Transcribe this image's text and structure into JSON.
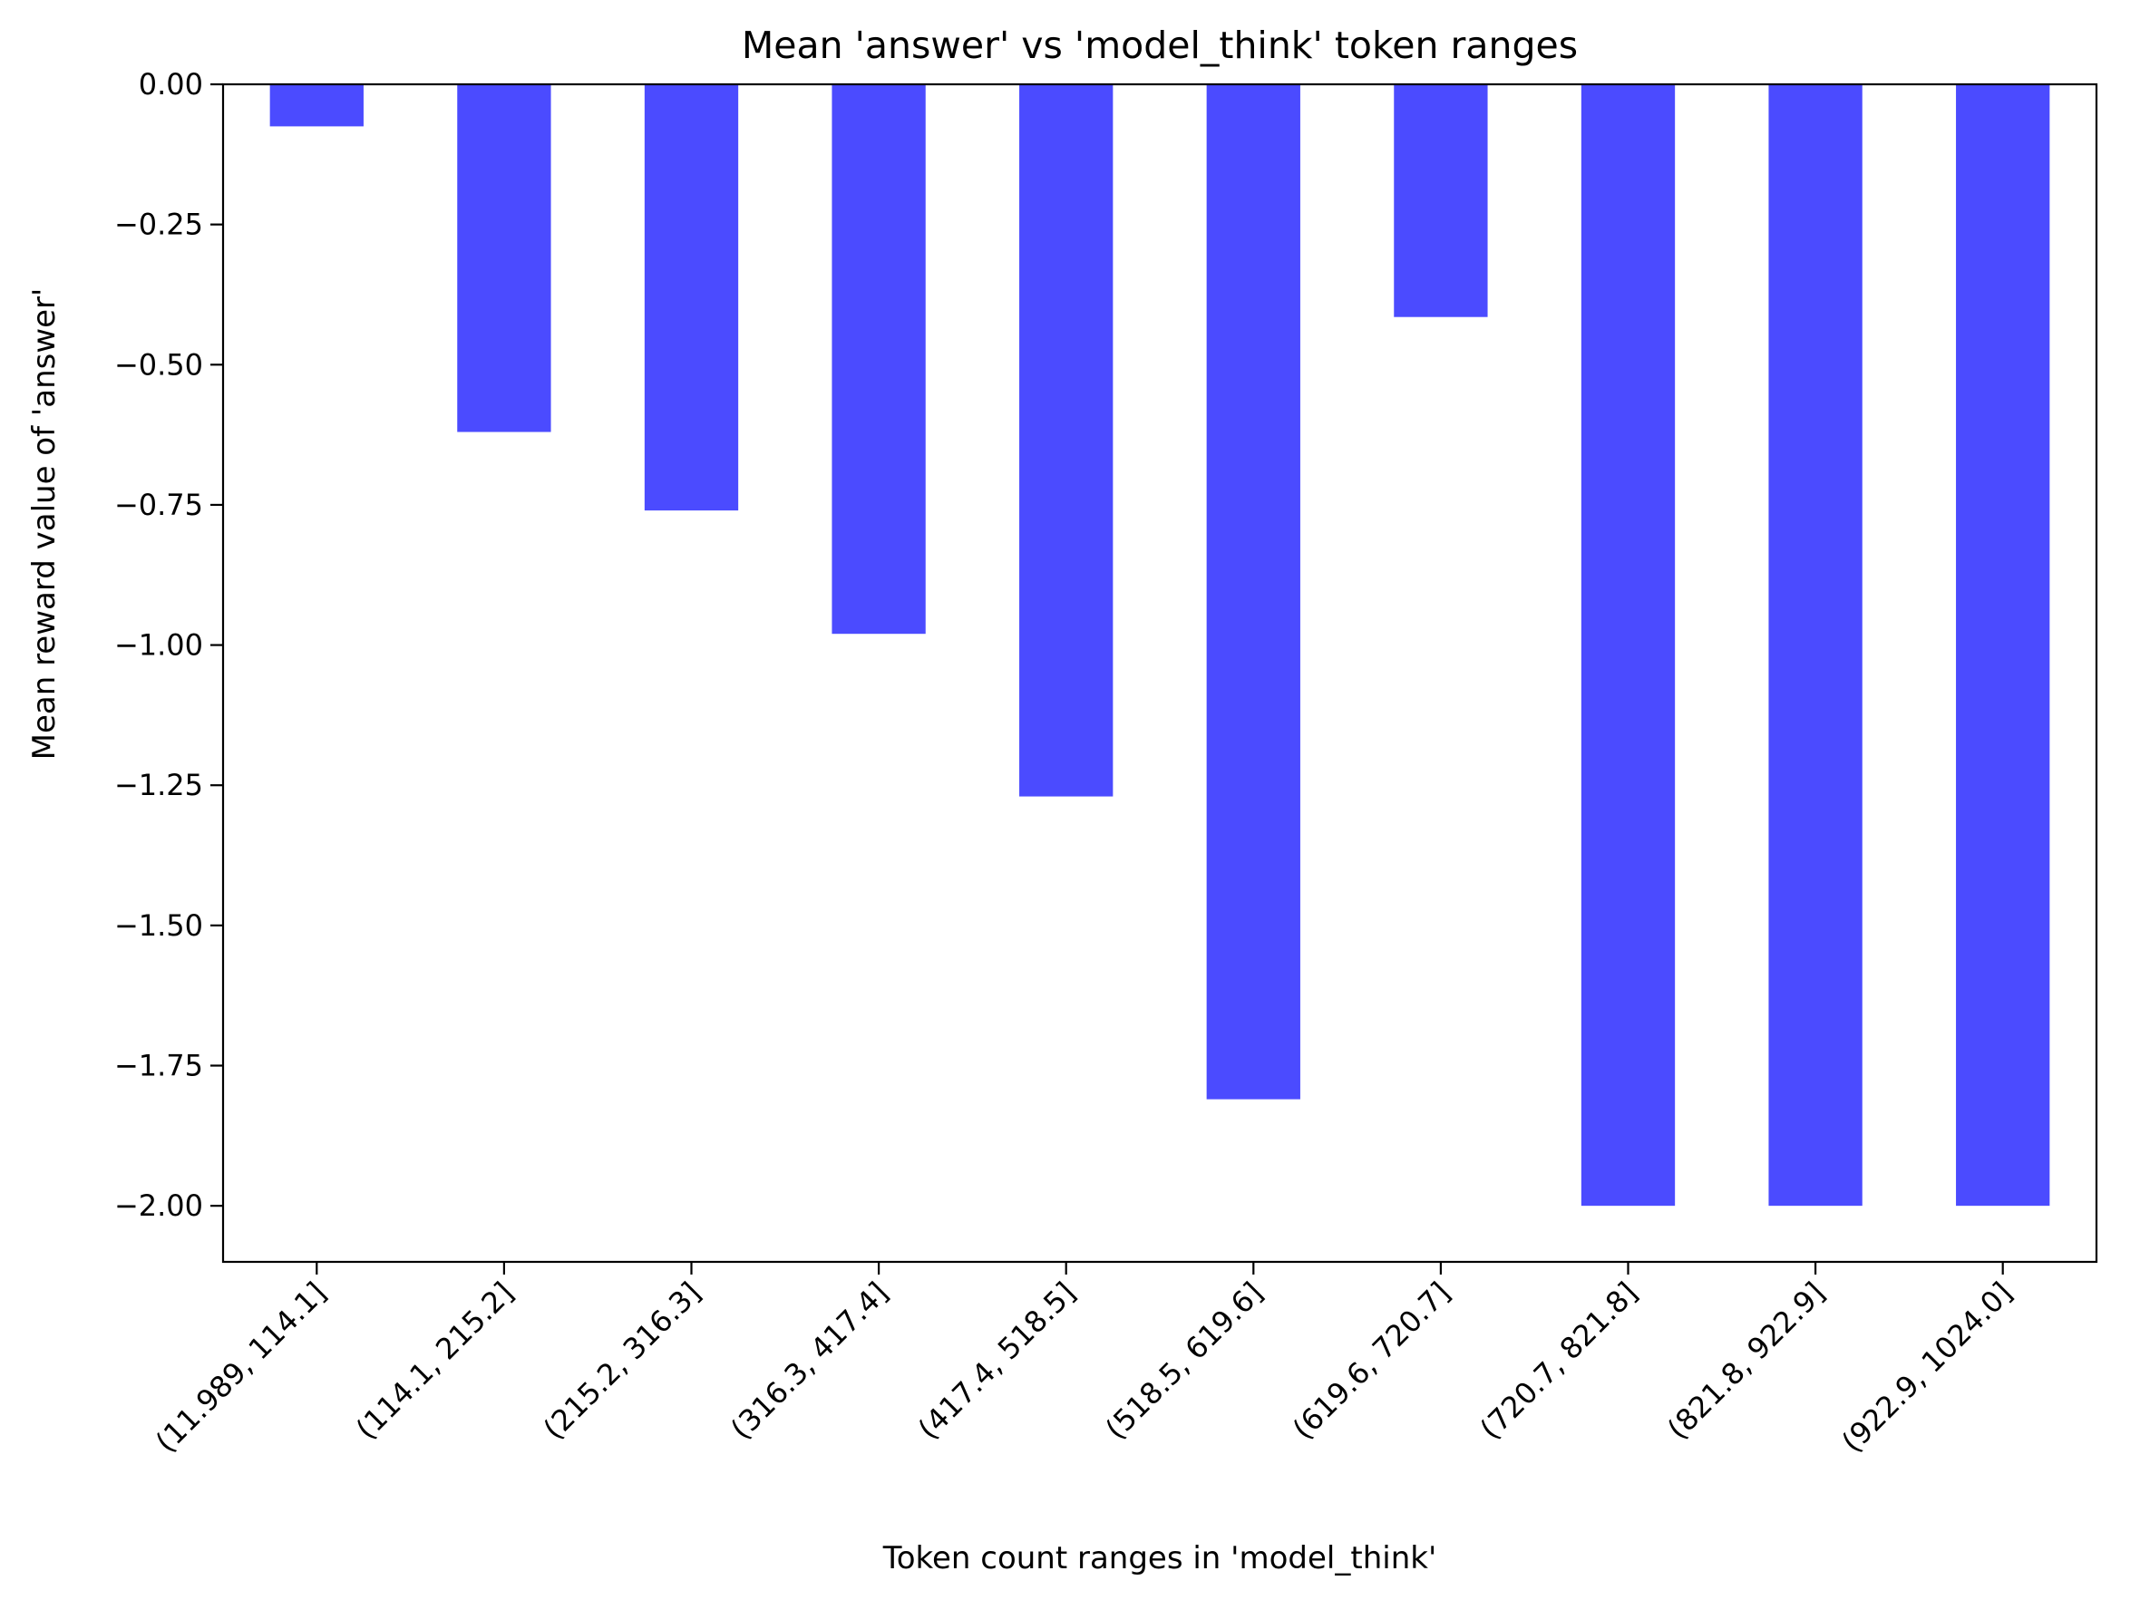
{
  "chart_data": {
    "type": "bar",
    "title": "Mean 'answer' vs 'model_think' token ranges",
    "xlabel": "Token count ranges in 'model_think'",
    "ylabel": "Mean reward value of 'answer'",
    "categories": [
      "(11.989, 114.1]",
      "(114.1, 215.2]",
      "(215.2, 316.3]",
      "(316.3, 417.4]",
      "(417.4, 518.5]",
      "(518.5, 619.6]",
      "(619.6, 720.7]",
      "(720.7, 821.8]",
      "(821.8, 922.9]",
      "(922.9, 1024.0]"
    ],
    "values": [
      -0.075,
      -0.62,
      -0.76,
      -0.98,
      -1.27,
      -1.81,
      -0.415,
      -2.0,
      -2.0,
      -2.0
    ],
    "ylim": [
      -2.1,
      0.0
    ],
    "yticks": [
      0.0,
      -0.25,
      -0.5,
      -0.75,
      -1.0,
      -1.25,
      -1.5,
      -1.75,
      -2.0
    ],
    "ytick_labels": [
      "0.00",
      "−0.25",
      "−0.50",
      "−0.75",
      "−1.00",
      "−1.25",
      "−1.50",
      "−1.75",
      "−2.00"
    ],
    "bar_color": "#4b4bff",
    "grid": false,
    "legend": null
  }
}
